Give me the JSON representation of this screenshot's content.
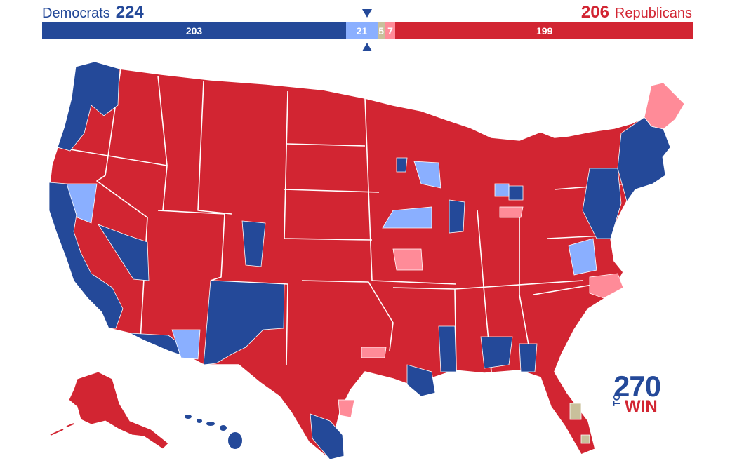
{
  "header": {
    "dem_label": "Democrats",
    "dem_total": "224",
    "rep_total": "206",
    "rep_label": "Republicans"
  },
  "seat_bar": {
    "segments": [
      {
        "key": "safe-dem",
        "seats": 203,
        "label": "203",
        "color": "#244999"
      },
      {
        "key": "lean-dem",
        "seats": 21,
        "label": "21",
        "color": "#8aafff"
      },
      {
        "key": "tossup",
        "seats": 5,
        "label": "5",
        "color": "#c9c09b"
      },
      {
        "key": "lean-rep",
        "seats": 7,
        "label": "7",
        "color": "#ff8b98"
      },
      {
        "key": "safe-rep",
        "seats": 199,
        "label": "199",
        "color": "#d22532"
      }
    ],
    "majority_marker": "down-and-up triangles"
  },
  "legend_colors": {
    "safe_dem": "#244999",
    "lean_dem": "#8aafff",
    "tossup": "#c9c09b",
    "lean_rep": "#ff8b98",
    "safe_rep": "#d22532"
  },
  "logo": {
    "number": "270",
    "small": "TO",
    "word": "WIN"
  }
}
